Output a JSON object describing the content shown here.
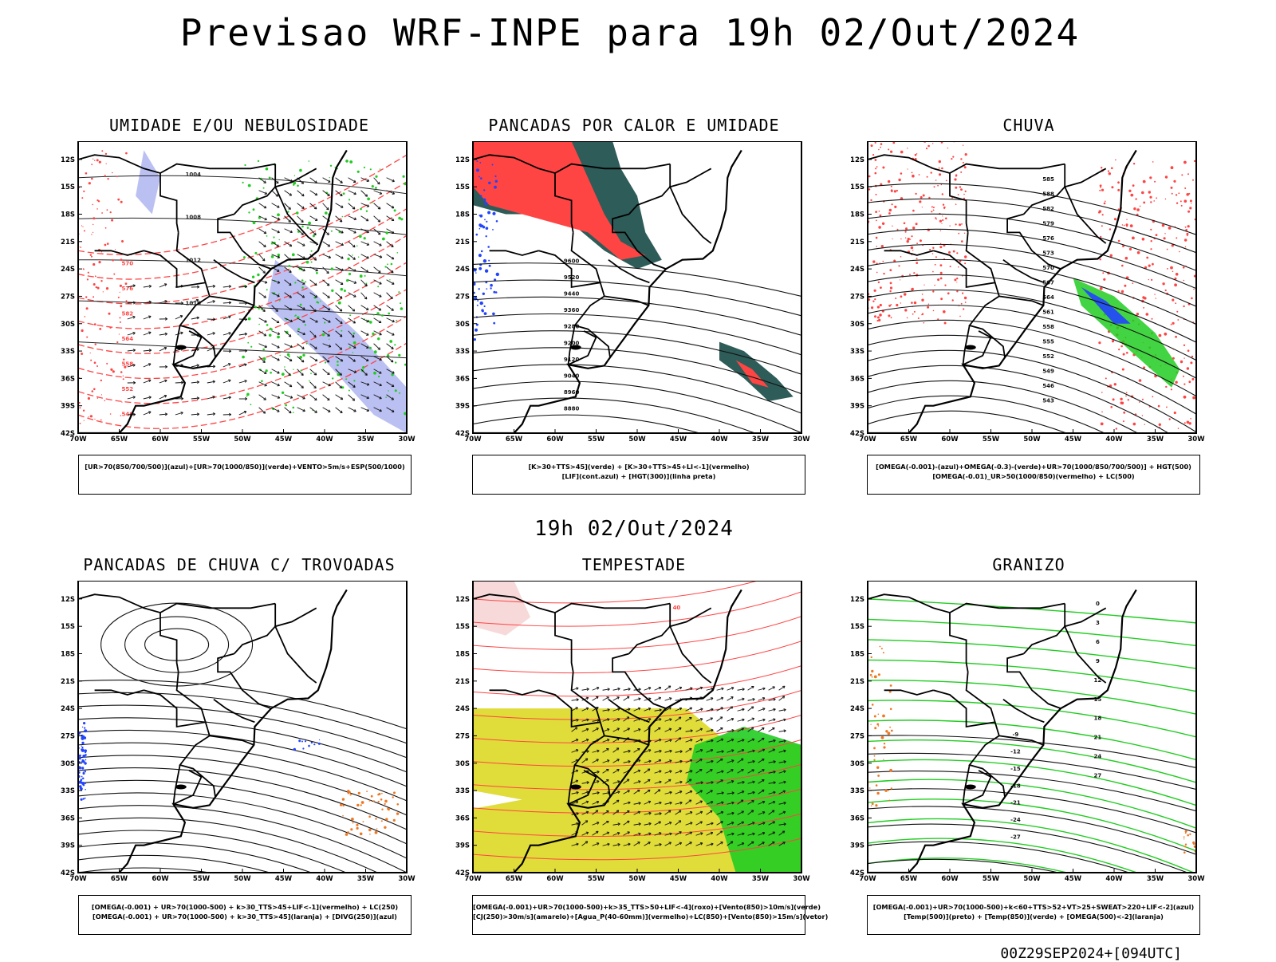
{
  "header": {
    "title": "Previsao WRF-INPE  para 19h 02/Out/2024"
  },
  "mid_date": "19h 02/Out/2024",
  "footer": {
    "run_stamp": "00Z29SEP2024+[094UTC]"
  },
  "axes": {
    "lat_labels": [
      "12S",
      "15S",
      "18S",
      "21S",
      "24S",
      "27S",
      "30S",
      "33S",
      "36S",
      "39S",
      "42S"
    ],
    "lon_labels": [
      "70W",
      "65W",
      "60W",
      "55W",
      "50W",
      "45W",
      "40W",
      "35W",
      "30W"
    ]
  },
  "panels": [
    {
      "id": "umidade",
      "title": "UMIDADE E/OU NEBULOSIDADE",
      "legend": [
        "[UR>70(850/700/500)](azul)+[UR>70(1000/850)](verde)+VENTO>5m/s+ESP(500/1000)"
      ],
      "contour_labels": [
        "1004",
        "1008",
        "1012",
        "1016",
        "570",
        "576",
        "582",
        "564",
        "558",
        "552",
        "546",
        "540",
        "534",
        "528"
      ]
    },
    {
      "id": "pancadas-calor",
      "title": "PANCADAS POR CALOR E UMIDADE",
      "legend": [
        "[K>30+TTS>45](verde)  +  [K>30+TTS>45+LI<-1](vermelho)",
        "[LIF](cont.azul)  +  [HGT(300)](linha preta)"
      ],
      "contour_labels": [
        "9600",
        "9520",
        "9440",
        "9360",
        "9280",
        "9200",
        "9120",
        "9040",
        "8960",
        "8880"
      ]
    },
    {
      "id": "chuva",
      "title": "CHUVA",
      "legend": [
        "[OMEGA(-0.001)-(azul)+OMEGA(-0.3)-(verde)+UR>70(1000/850/700/500)]  +  HGT(500)",
        "[OMEGA(-0.01)_UR>50(1000/850)(vermelho)  +  LC(500)"
      ],
      "contour_labels": [
        "585",
        "588",
        "582",
        "579",
        "576",
        "573",
        "570",
        "567",
        "564",
        "561",
        "558",
        "555",
        "552",
        "549",
        "546",
        "543",
        "540",
        "537",
        "534"
      ]
    },
    {
      "id": "pancadas-trovoadas",
      "title": "PANCADAS DE CHUVA C/ TROVOADAS",
      "legend": [
        "[OMEGA(-0.001)  +  UR>70(1000-500)  +  k>30_TTS>45+LIF<-1](vermelho)  +  LC(250)",
        "[OMEGA(-0.001)  +  UR>70(1000-500)  +  k>30_TTS>45](laranja)  +  [DIVG(250)](azul)"
      ],
      "contour_labels": []
    },
    {
      "id": "tempestade",
      "title": "TEMPESTADE",
      "legend": [
        "[OMEGA(-0.001)+UR>70(1000-500)+k>35_TTS>50+LIF<-4](roxo)+[Vento(850)>10m/s](verde)",
        "[CJ(250)>30m/s](amarelo)+[Agua_P(40-60mm)](vermelho)+LC(850)+[Vento(850)>15m/s](vetor)"
      ],
      "contour_labels": [
        "40"
      ]
    },
    {
      "id": "granizo",
      "title": "GRANIZO",
      "legend": [
        "[OMEGA(-0.001)+UR>70(1000-500)+k<60+TTS>52+VT>25+SWEAT>220+LIF<-2](azul)",
        "[Temp(500)](preto)  +  [Temp(850)](verde)  +  [OMEGA(500)<-2](laranja)"
      ],
      "contour_labels": [
        "-9",
        "-12",
        "-15",
        "-18",
        "-21",
        "-24",
        "-27",
        "0",
        "3",
        "6",
        "9",
        "12",
        "15",
        "18",
        "21",
        "24",
        "27"
      ]
    }
  ],
  "colors": {
    "red": "#ff4444",
    "green": "#22cc22",
    "blue": "#2244ff",
    "lightblue": "#aab0f0",
    "yellow": "#e0dc3a",
    "teal": "#2e5c58",
    "orange": "#ee7722"
  }
}
